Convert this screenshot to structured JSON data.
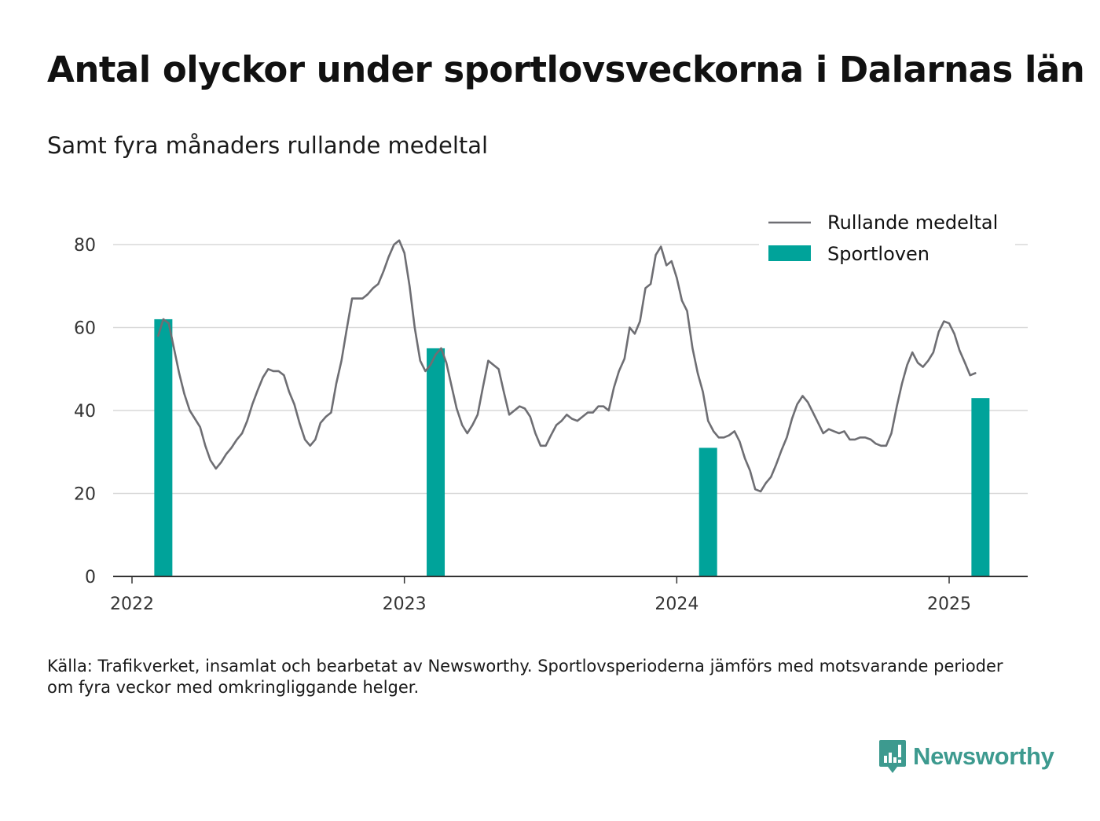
{
  "title": "Antal olyckor under sportlovsveckorna i Dalarnas län",
  "subtitle": "Samt fyra månaders rullande medeltal",
  "source": "Källa: Trafikverket, insamlat och bearbetat av Newsworthy. Sportlovsperioderna jämförs med motsvarande perioder om fyra veckor med omkringliggande helger.",
  "brand": {
    "name": "Newsworthy",
    "color": "#3d9a8f",
    "icon": "newsworthy-logo-icon"
  },
  "colors": {
    "line": "#6e6e73",
    "bar": "#00a39a",
    "grid": "#d9d9d9",
    "axis": "#333333"
  },
  "chart_data": {
    "type": "bar+line",
    "title": "Antal olyckor under sportlovsveckorna i Dalarnas län",
    "subtitle": "Samt fyra månaders rullande medeltal",
    "xlabel": "",
    "ylabel": "",
    "ylim": [
      0,
      90
    ],
    "yticks": [
      0,
      20,
      40,
      60,
      80
    ],
    "xlim": [
      2021.92,
      2025.29
    ],
    "xticks": [
      2022,
      2023,
      2024,
      2025
    ],
    "xtick_labels": [
      "2022",
      "2023",
      "2024",
      "2025"
    ],
    "grid": "horizontal",
    "legend": "top-right",
    "series": [
      {
        "name": "Rullande medeltal",
        "type": "line",
        "color": "#6e6e73",
        "points": [
          [
            2022.096,
            58
          ],
          [
            2022.115,
            62
          ],
          [
            2022.135,
            61
          ],
          [
            2022.154,
            55
          ],
          [
            2022.173,
            49
          ],
          [
            2022.192,
            44
          ],
          [
            2022.212,
            40
          ],
          [
            2022.231,
            38
          ],
          [
            2022.25,
            36
          ],
          [
            2022.269,
            31.5
          ],
          [
            2022.288,
            28
          ],
          [
            2022.308,
            26
          ],
          [
            2022.327,
            27.5
          ],
          [
            2022.346,
            29.5
          ],
          [
            2022.365,
            31
          ],
          [
            2022.385,
            33
          ],
          [
            2022.404,
            34.5
          ],
          [
            2022.423,
            37.5
          ],
          [
            2022.442,
            41.5
          ],
          [
            2022.462,
            45
          ],
          [
            2022.481,
            48
          ],
          [
            2022.5,
            50
          ],
          [
            2022.519,
            49.5
          ],
          [
            2022.538,
            49.5
          ],
          [
            2022.558,
            48.5
          ],
          [
            2022.577,
            44.5
          ],
          [
            2022.596,
            41.5
          ],
          [
            2022.615,
            37
          ],
          [
            2022.635,
            33
          ],
          [
            2022.654,
            31.5
          ],
          [
            2022.673,
            33
          ],
          [
            2022.692,
            37
          ],
          [
            2022.712,
            38.5
          ],
          [
            2022.731,
            39.5
          ],
          [
            2022.75,
            46.5
          ],
          [
            2022.769,
            52
          ],
          [
            2022.788,
            59.5
          ],
          [
            2022.808,
            67
          ],
          [
            2022.827,
            67
          ],
          [
            2022.846,
            67
          ],
          [
            2022.865,
            68
          ],
          [
            2022.885,
            69.5
          ],
          [
            2022.904,
            70.5
          ],
          [
            2022.923,
            73.5
          ],
          [
            2022.942,
            77
          ],
          [
            2022.962,
            80
          ],
          [
            2022.981,
            81
          ],
          [
            2023.0,
            78
          ],
          [
            2023.019,
            70
          ],
          [
            2023.038,
            60
          ],
          [
            2023.058,
            52
          ],
          [
            2023.077,
            49.5
          ],
          [
            2023.096,
            51
          ],
          [
            2023.115,
            53.5
          ],
          [
            2023.135,
            55
          ],
          [
            2023.154,
            51.5
          ],
          [
            2023.173,
            46
          ],
          [
            2023.192,
            40.5
          ],
          [
            2023.212,
            36.5
          ],
          [
            2023.231,
            34.5
          ],
          [
            2023.25,
            36.5
          ],
          [
            2023.269,
            39
          ],
          [
            2023.288,
            45.5
          ],
          [
            2023.308,
            52
          ],
          [
            2023.327,
            51
          ],
          [
            2023.346,
            50
          ],
          [
            2023.365,
            44.5
          ],
          [
            2023.385,
            39
          ],
          [
            2023.404,
            40
          ],
          [
            2023.423,
            41
          ],
          [
            2023.442,
            40.5
          ],
          [
            2023.462,
            38.5
          ],
          [
            2023.481,
            34.5
          ],
          [
            2023.5,
            31.5
          ],
          [
            2023.519,
            31.5
          ],
          [
            2023.538,
            34
          ],
          [
            2023.558,
            36.5
          ],
          [
            2023.577,
            37.5
          ],
          [
            2023.596,
            39
          ],
          [
            2023.615,
            38
          ],
          [
            2023.635,
            37.5
          ],
          [
            2023.654,
            38.5
          ],
          [
            2023.673,
            39.5
          ],
          [
            2023.692,
            39.5
          ],
          [
            2023.712,
            41
          ],
          [
            2023.731,
            41
          ],
          [
            2023.75,
            40
          ],
          [
            2023.769,
            45.5
          ],
          [
            2023.788,
            49.5
          ],
          [
            2023.808,
            52.5
          ],
          [
            2023.827,
            60
          ],
          [
            2023.846,
            58.5
          ],
          [
            2023.865,
            61.5
          ],
          [
            2023.885,
            69.5
          ],
          [
            2023.904,
            70.5
          ],
          [
            2023.923,
            77.5
          ],
          [
            2023.942,
            79.5
          ],
          [
            2023.962,
            75
          ],
          [
            2023.981,
            76
          ],
          [
            2024.0,
            72
          ],
          [
            2024.019,
            66.5
          ],
          [
            2024.038,
            64
          ],
          [
            2024.058,
            55
          ],
          [
            2024.077,
            49
          ],
          [
            2024.096,
            44.5
          ],
          [
            2024.115,
            37.5
          ],
          [
            2024.135,
            35
          ],
          [
            2024.154,
            33.5
          ],
          [
            2024.173,
            33.5
          ],
          [
            2024.192,
            34
          ],
          [
            2024.212,
            35
          ],
          [
            2024.231,
            32.5
          ],
          [
            2024.25,
            28.5
          ],
          [
            2024.269,
            25.5
          ],
          [
            2024.288,
            21
          ],
          [
            2024.308,
            20.5
          ],
          [
            2024.327,
            22.5
          ],
          [
            2024.346,
            24
          ],
          [
            2024.365,
            27
          ],
          [
            2024.385,
            30.5
          ],
          [
            2024.404,
            33.5
          ],
          [
            2024.423,
            38
          ],
          [
            2024.442,
            41.5
          ],
          [
            2024.462,
            43.5
          ],
          [
            2024.481,
            42
          ],
          [
            2024.5,
            39.5
          ],
          [
            2024.519,
            37
          ],
          [
            2024.538,
            34.5
          ],
          [
            2024.558,
            35.5
          ],
          [
            2024.577,
            35
          ],
          [
            2024.596,
            34.5
          ],
          [
            2024.615,
            35
          ],
          [
            2024.635,
            33
          ],
          [
            2024.654,
            33
          ],
          [
            2024.673,
            33.5
          ],
          [
            2024.692,
            33.5
          ],
          [
            2024.712,
            33
          ],
          [
            2024.731,
            32
          ],
          [
            2024.75,
            31.5
          ],
          [
            2024.769,
            31.5
          ],
          [
            2024.788,
            34.5
          ],
          [
            2024.808,
            41
          ],
          [
            2024.827,
            46.5
          ],
          [
            2024.846,
            51
          ],
          [
            2024.865,
            54
          ],
          [
            2024.885,
            51.5
          ],
          [
            2024.904,
            50.5
          ],
          [
            2024.923,
            52
          ],
          [
            2024.942,
            54
          ],
          [
            2024.962,
            59
          ],
          [
            2024.981,
            61.5
          ],
          [
            2025.0,
            61
          ],
          [
            2025.019,
            58.5
          ],
          [
            2025.038,
            54.5
          ],
          [
            2025.058,
            51.5
          ],
          [
            2025.077,
            48.5
          ],
          [
            2025.096,
            49
          ]
        ]
      },
      {
        "name": "Sportloven",
        "type": "bar",
        "color": "#00a39a",
        "points": [
          [
            2022.115,
            62
          ],
          [
            2023.115,
            55
          ],
          [
            2024.115,
            31
          ],
          [
            2025.115,
            43
          ]
        ]
      }
    ]
  }
}
